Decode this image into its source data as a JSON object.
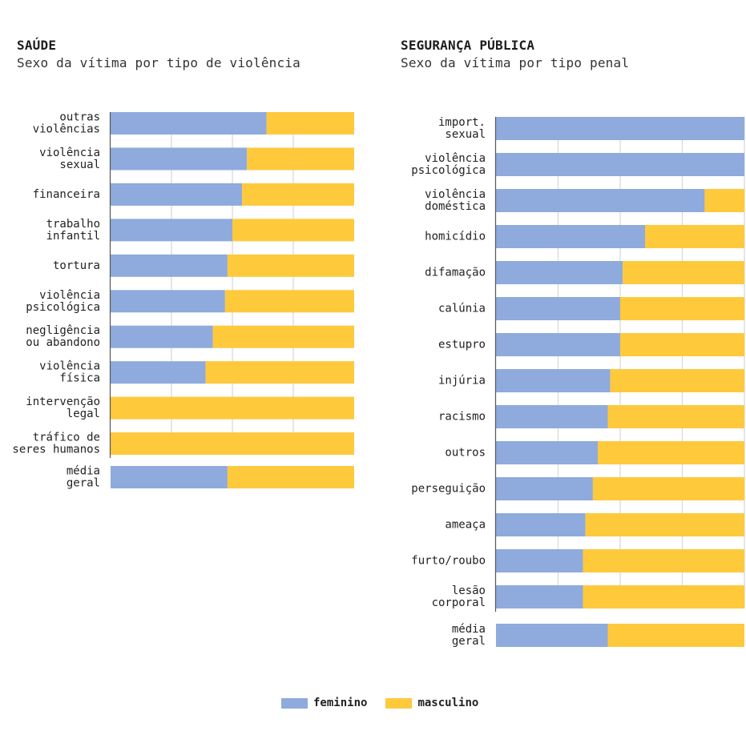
{
  "colors": {
    "feminino": "#8faadc",
    "masculino": "#ffc93c",
    "grid": "#d9d9d9",
    "axis": "#555555"
  },
  "legend": {
    "items": [
      {
        "label": "feminino",
        "key": "feminino"
      },
      {
        "label": "masculino",
        "key": "masculino"
      }
    ]
  },
  "chart_data": [
    {
      "type": "bar",
      "orientation": "horizontal",
      "stacked": true,
      "normalized": "percent",
      "title": "SAÚDE",
      "subtitle": "Sexo da vítima por tipo de violência",
      "xlim": [
        0,
        100
      ],
      "grid": true,
      "gridlines": [
        25,
        50,
        75
      ],
      "legend_position": "bottom-center",
      "categories": [
        [
          "outras",
          "violências"
        ],
        [
          "violência",
          "sexual"
        ],
        [
          "financeira"
        ],
        [
          "trabalho",
          "infantil"
        ],
        [
          "tortura"
        ],
        [
          "violência",
          "psicológica"
        ],
        [
          "negligência",
          "ou abandono"
        ],
        [
          "violência",
          "física"
        ],
        [
          "intervenção",
          "legal"
        ],
        [
          "tráfico de",
          "seres humanos"
        ]
      ],
      "series": [
        {
          "name": "feminino",
          "values": [
            64,
            56,
            54,
            50,
            48,
            47,
            42,
            39,
            0,
            0
          ]
        },
        {
          "name": "masculino",
          "values": [
            36,
            44,
            46,
            50,
            52,
            53,
            58,
            61,
            100,
            100
          ]
        }
      ],
      "summary": {
        "label": [
          "média",
          "geral"
        ],
        "feminino": 48,
        "masculino": 52
      }
    },
    {
      "type": "bar",
      "orientation": "horizontal",
      "stacked": true,
      "normalized": "percent",
      "title": "SEGURANÇA PÚBLICA",
      "subtitle": "Sexo da vítima por tipo penal",
      "xlim": [
        0,
        100
      ],
      "grid": true,
      "gridlines": [
        25,
        50,
        75,
        100
      ],
      "legend_position": "bottom-center",
      "categories": [
        [
          "import.",
          "sexual"
        ],
        [
          "violência",
          "psicológica"
        ],
        [
          "violência",
          "doméstica"
        ],
        [
          "homicídio"
        ],
        [
          "difamação"
        ],
        [
          "calúnia"
        ],
        [
          "estupro"
        ],
        [
          "injúria"
        ],
        [
          "racismo"
        ],
        [
          "outros"
        ],
        [
          "perseguição"
        ],
        [
          "ameaça"
        ],
        [
          "furto/roubo"
        ],
        [
          "lesão",
          "corporal"
        ]
      ],
      "series": [
        {
          "name": "feminino",
          "values": [
            100,
            100,
            84,
            60,
            51,
            50,
            50,
            46,
            45,
            41,
            39,
            36,
            35,
            35
          ]
        },
        {
          "name": "masculino",
          "values": [
            0,
            0,
            16,
            40,
            49,
            50,
            50,
            54,
            55,
            59,
            61,
            64,
            65,
            65
          ]
        }
      ],
      "summary": {
        "label": [
          "média",
          "geral"
        ],
        "feminino": 45,
        "masculino": 55
      }
    }
  ]
}
